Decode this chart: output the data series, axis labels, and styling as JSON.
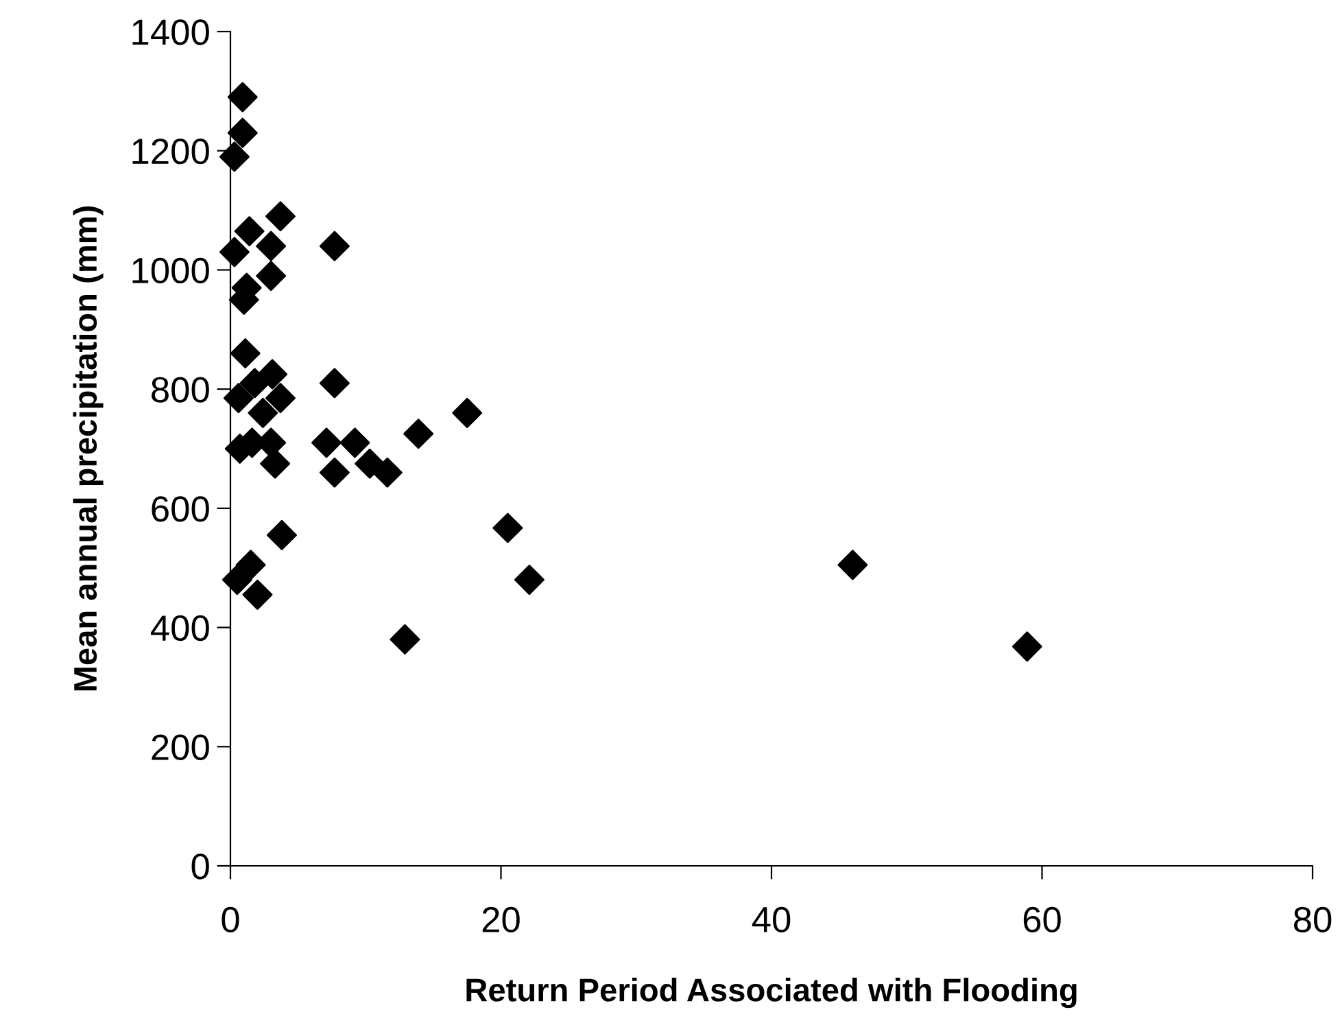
{
  "chart_data": {
    "type": "scatter",
    "xlabel": "Return Period Associated with Flooding",
    "ylabel": "Mean annual precipitation (mm)",
    "x": [
      0.9,
      0.9,
      0.3,
      0.3,
      1.4,
      3.7,
      7.7,
      3.0,
      3.0,
      1.0,
      1.2,
      1.1,
      1.8,
      3.1,
      7.7,
      0.6,
      3.7,
      2.4,
      1.6,
      0.7,
      3.0,
      3.3,
      7.1,
      7.7,
      9.2,
      10.3,
      11.6,
      13.9,
      17.5,
      20.5,
      22.1,
      12.9,
      46.0,
      58.9,
      3.8,
      1.5,
      0.5,
      2.0
    ],
    "values": [
      1290,
      1230,
      1190,
      1030,
      1065,
      1090,
      1040,
      1040,
      990,
      950,
      970,
      860,
      810,
      825,
      810,
      785,
      785,
      760,
      710,
      700,
      710,
      675,
      710,
      660,
      710,
      675,
      660,
      725,
      760,
      567,
      480,
      380,
      505,
      368,
      555,
      505,
      480,
      455
    ],
    "color": "#000000",
    "marker": "diamond",
    "xlim": [
      0,
      80
    ],
    "xticks": [
      0,
      20,
      40,
      60,
      80
    ],
    "ylim": [
      0,
      1400
    ],
    "yticks": [
      0,
      200,
      400,
      600,
      800,
      1000,
      1200,
      1400
    ],
    "grid": false,
    "legend": false
  }
}
